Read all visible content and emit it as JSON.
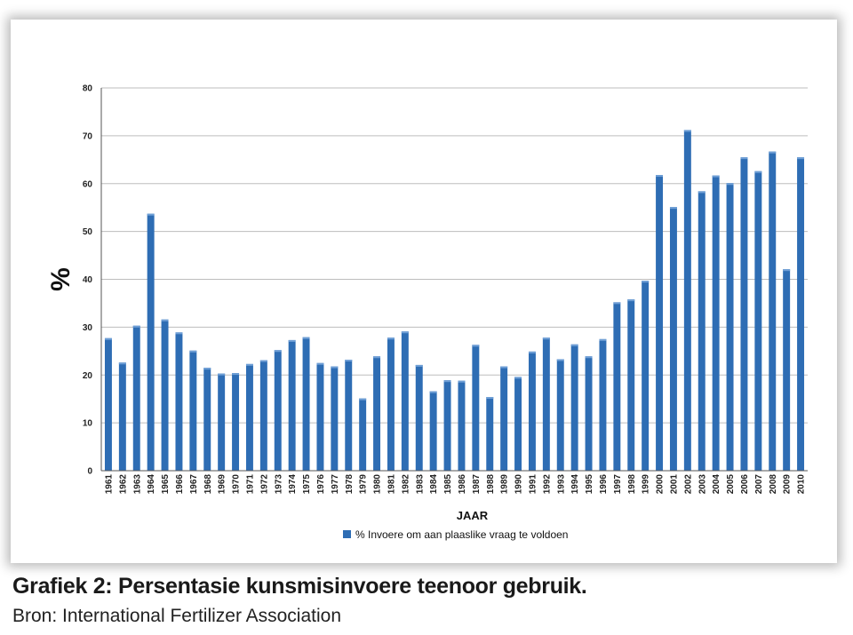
{
  "chart_data": {
    "type": "bar",
    "categories": [
      "1961",
      "1962",
      "1963",
      "1964",
      "1965",
      "1966",
      "1967",
      "1968",
      "1969",
      "1970",
      "1971",
      "1972",
      "1973",
      "1974",
      "1975",
      "1976",
      "1977",
      "1978",
      "1979",
      "1980",
      "1981",
      "1982",
      "1983",
      "1984",
      "1985",
      "1986",
      "1987",
      "1988",
      "1989",
      "1990",
      "1991",
      "1992",
      "1993",
      "1994",
      "1995",
      "1996",
      "1997",
      "1998",
      "1999",
      "2000",
      "2001",
      "2002",
      "2003",
      "2004",
      "2005",
      "2006",
      "2007",
      "2008",
      "2009",
      "2010"
    ],
    "series": [
      {
        "name": "% Invoere om aan plaaslike vraag te voldoen",
        "values": [
          27.7,
          22.6,
          30.3,
          53.7,
          31.6,
          28.9,
          25.1,
          21.5,
          20.3,
          20.4,
          22.3,
          23.1,
          25.2,
          27.3,
          27.9,
          22.5,
          21.8,
          23.2,
          15.1,
          23.9,
          27.8,
          29.1,
          22.1,
          16.6,
          18.9,
          18.8,
          26.3,
          15.4,
          21.8,
          19.6,
          24.9,
          27.8,
          23.3,
          26.4,
          23.9,
          27.5,
          35.2,
          35.8,
          39.7,
          61.8,
          55.1,
          71.2,
          58.4,
          61.7,
          60.1,
          65.5,
          62.6,
          66.7,
          42.1,
          65.5
        ]
      }
    ],
    "title": "",
    "xlabel": "JAAR",
    "ylabel": "%",
    "ylim": [
      0,
      80
    ],
    "yticks": [
      0,
      10,
      20,
      30,
      40,
      50,
      60,
      70,
      80
    ],
    "grid": true,
    "legend_position": "bottom",
    "bar_color": "#2e6db4"
  },
  "caption": {
    "title": "Grafiek 2: Persentasie kunsmisinvoere teenoor gebruik.",
    "source": "Bron: International Fertilizer Association"
  }
}
